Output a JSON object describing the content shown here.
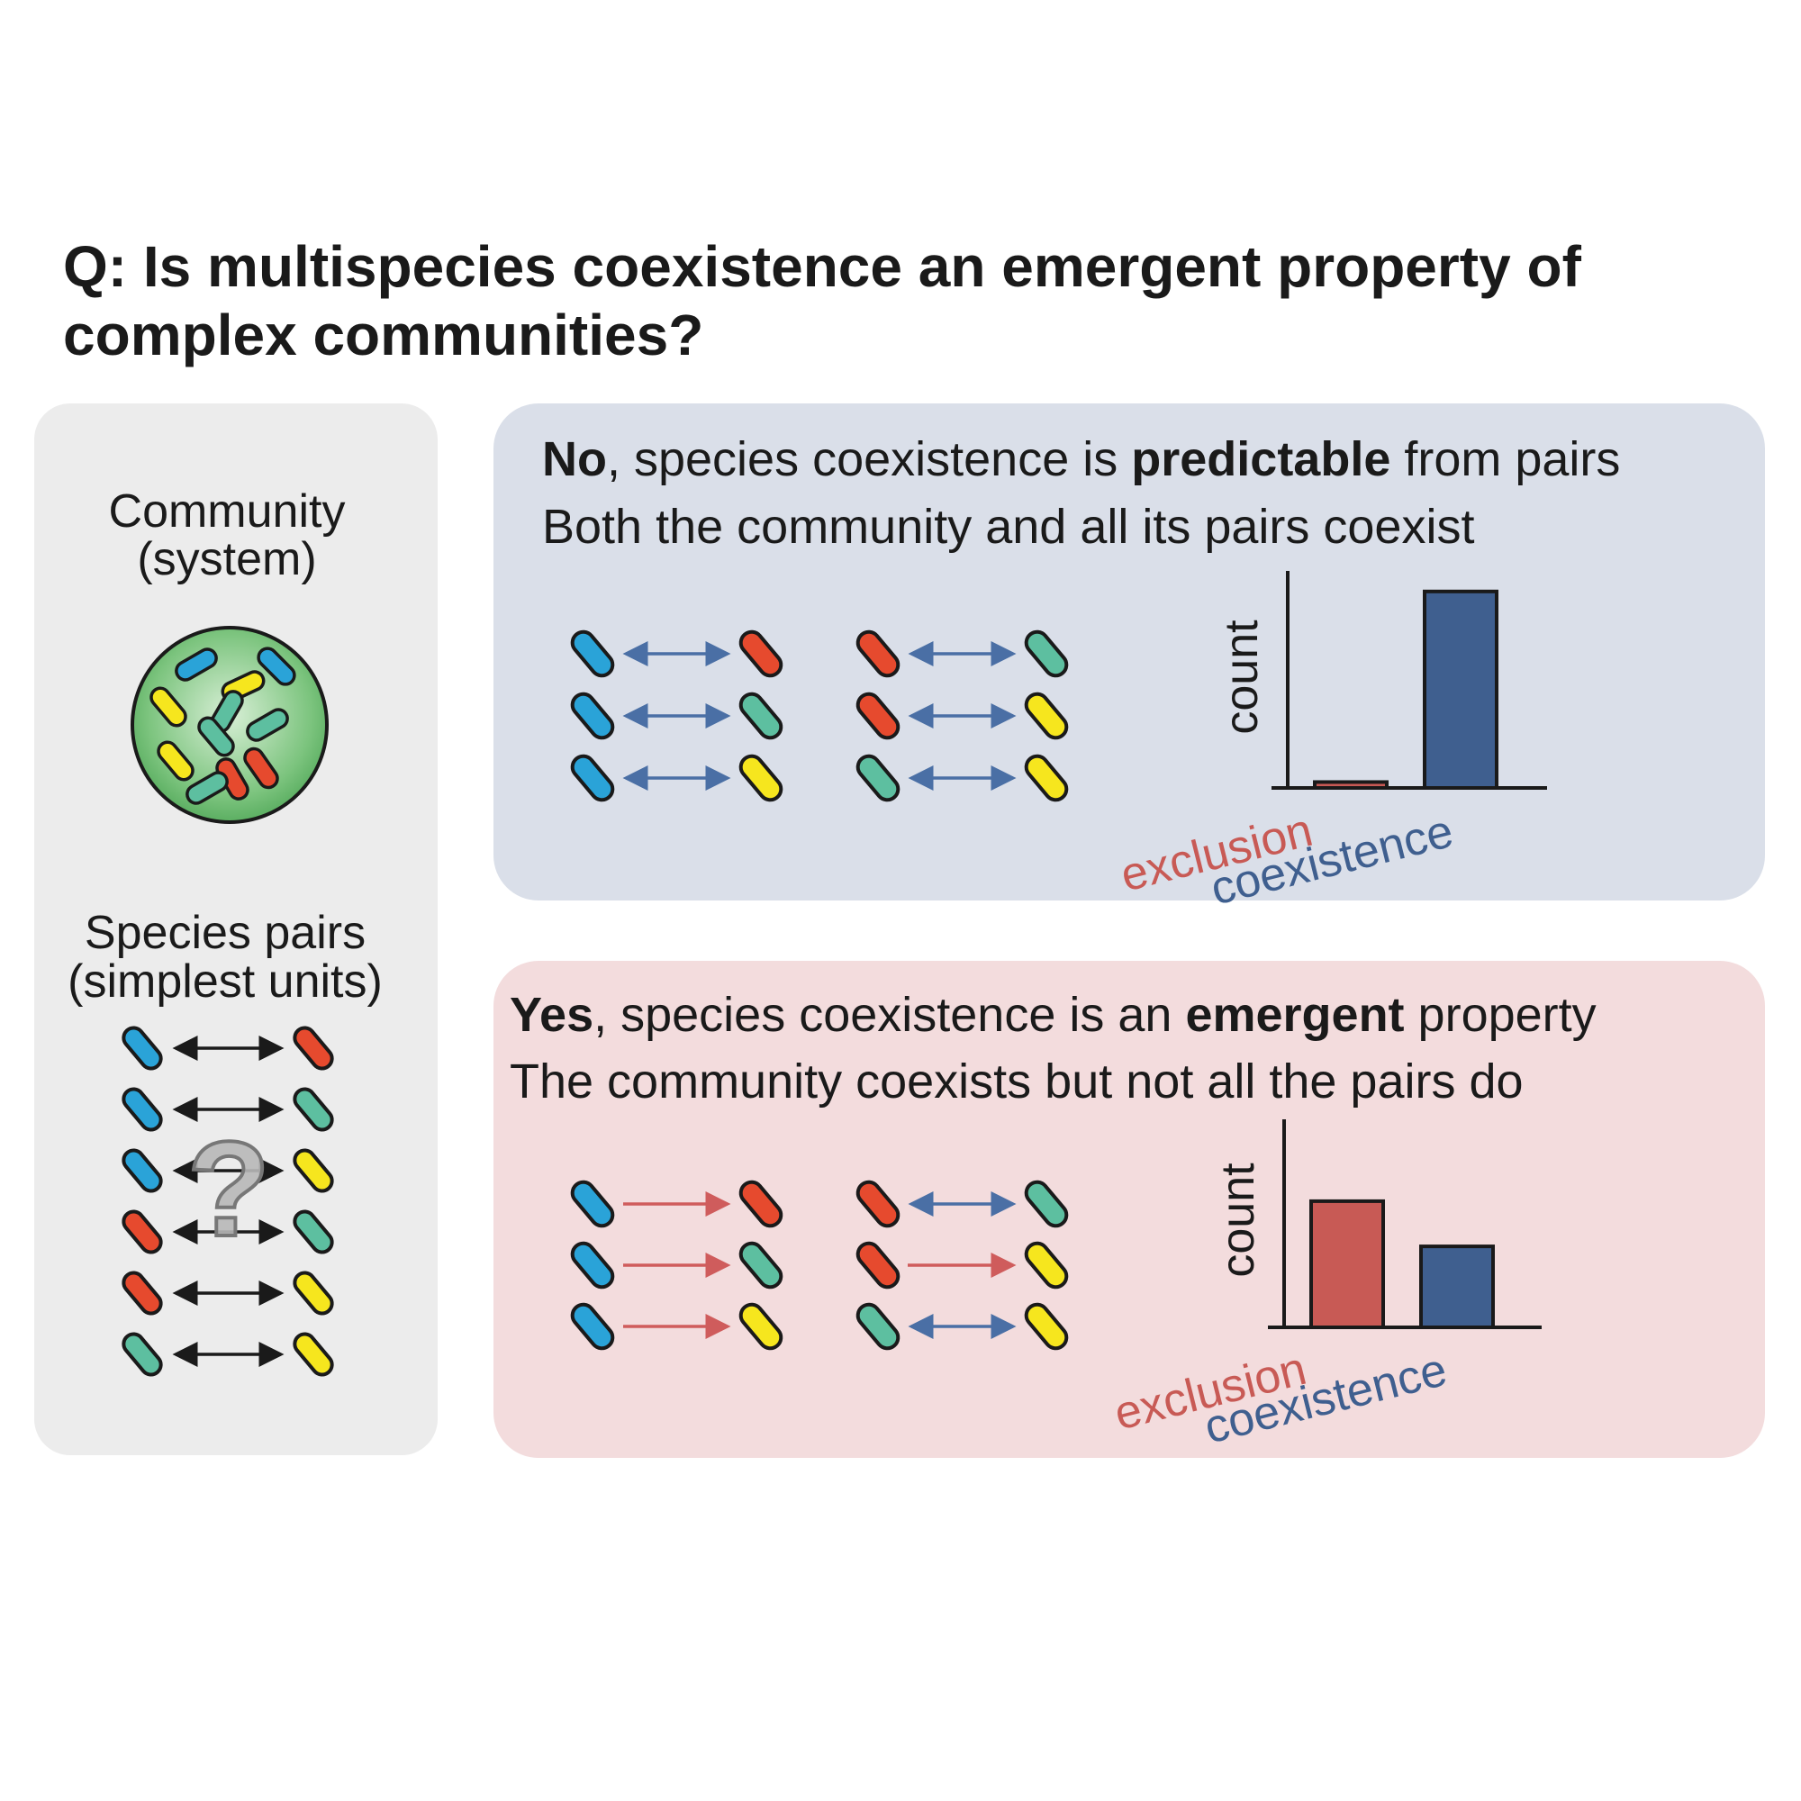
{
  "title": {
    "line1": "Q: Is multispecies coexistence an emergent property of",
    "line2": "complex communities?"
  },
  "left_panel": {
    "community_label_1": "Community",
    "community_label_2": "(system)",
    "pairs_label_1": "Species pairs",
    "pairs_label_2": "(simplest units)",
    "question_mark": "?"
  },
  "no_panel": {
    "lead_bold": "No",
    "lead_text": ", species coexistence is ",
    "emph_bold": "predictable",
    "tail_text": " from pairs",
    "line2": "Both the community and all its pairs coexist",
    "chart_ylabel": "count",
    "label_exclusion": "exclusion",
    "label_coexistence": "coexistence"
  },
  "yes_panel": {
    "lead_bold": "Yes",
    "lead_text": ", species coexistence is an ",
    "emph_bold": "emergent",
    "tail_text": " property",
    "line2": "The community coexists but not all the pairs do",
    "chart_ylabel": "count",
    "label_exclusion": "exclusion",
    "label_coexistence": "coexistence"
  },
  "colors": {
    "blue": "#2aa3d8",
    "red": "#e64a2e",
    "teal": "#5dbfa0",
    "yellow": "#f6e61e",
    "exclusion": "#c85a55",
    "coexistence": "#3f5f8f",
    "no_bg": "#dadfe9",
    "yes_bg": "#f3dcdd",
    "left_bg": "#ececec"
  },
  "chart_data": [
    {
      "type": "bar",
      "categories": [
        "exclusion",
        "coexistence"
      ],
      "values": [
        0.03,
        1.0
      ],
      "ylabel": "count",
      "ylim": [
        0,
        1.1
      ]
    },
    {
      "type": "bar",
      "categories": [
        "exclusion",
        "coexistence"
      ],
      "values": [
        0.67,
        0.43
      ],
      "ylabel": "count",
      "ylim": [
        0,
        1.1
      ]
    }
  ]
}
